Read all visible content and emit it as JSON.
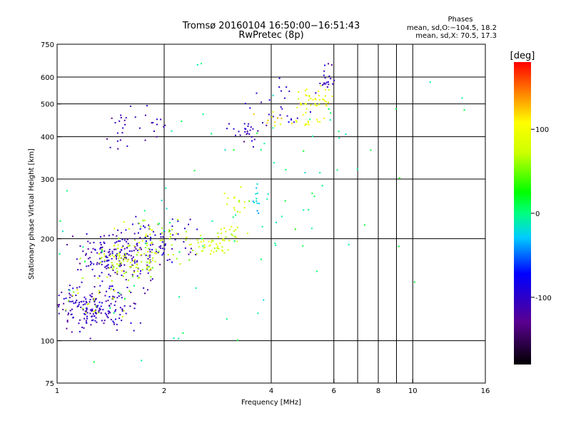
{
  "chart_data": {
    "type": "scatter",
    "title": "Tromsø 20160104 16:50:00−16:51:43",
    "subtitle": "RwPretec (8p)",
    "stats": {
      "heading": "Phases",
      "line1": "mean, sd,O:−104.5, 18.2",
      "line2": "mean, sd,X:  70.5, 17.3"
    },
    "xlabel": "Frequency [MHz]",
    "ylabel": "Stationary phase Virtual Height [km]",
    "x_scale": "log",
    "y_scale": "log",
    "xlim": [
      1,
      16
    ],
    "ylim": [
      75,
      750
    ],
    "x_ticks": [
      1,
      2,
      4,
      6,
      8,
      10,
      16
    ],
    "x_tick_labels": [
      "1",
      "2",
      "4",
      "6",
      "8",
      "10",
      "16"
    ],
    "x_gridlines": [
      2,
      4,
      6,
      7,
      8,
      9,
      10
    ],
    "y_ticks": [
      75,
      100,
      200,
      300,
      400,
      500,
      600,
      750
    ],
    "y_tick_labels": [
      "75",
      "100",
      "200",
      "300",
      "400",
      "500",
      "600",
      "750"
    ],
    "y_gridlines": [
      100,
      200,
      300,
      400,
      500,
      600
    ],
    "colorbar": {
      "label": "[deg]",
      "range": [
        -180,
        180
      ],
      "ticks": [
        100,
        0,
        -100
      ],
      "tick_labels": [
        "100",
        "0",
        "-100"
      ]
    },
    "series": [
      {
        "clusters": [
          {
            "fc": 1.12,
            "hc": 125,
            "dx": 0.1,
            "dy": 0.08,
            "n": 80,
            "c": -110
          },
          {
            "fc": 1.28,
            "hc": 125,
            "dx": 0.09,
            "dy": 0.07,
            "n": 70,
            "c": -100
          },
          {
            "fc": 1.45,
            "hc": 130,
            "dx": 0.1,
            "dy": 0.1,
            "n": 60,
            "c": -110
          },
          {
            "fc": 1.35,
            "hc": 185,
            "dx": 0.12,
            "dy": 0.07,
            "n": 70,
            "c": -110
          },
          {
            "fc": 1.55,
            "hc": 175,
            "dx": 0.13,
            "dy": 0.06,
            "n": 90,
            "c": -108
          },
          {
            "fc": 1.85,
            "hc": 200,
            "dx": 0.15,
            "dy": 0.08,
            "n": 70,
            "c": -100
          },
          {
            "fc": 1.5,
            "hc": 430,
            "dx": 0.05,
            "dy": 0.08,
            "n": 20,
            "c": -110
          },
          {
            "fc": 1.9,
            "hc": 440,
            "dx": 0.04,
            "dy": 0.06,
            "n": 12,
            "c": -110
          },
          {
            "fc": 3.35,
            "hc": 415,
            "dx": 0.05,
            "dy": 0.04,
            "n": 25,
            "c": -110
          },
          {
            "fc": 4.2,
            "hc": 490,
            "dx": 0.1,
            "dy": 0.08,
            "n": 25,
            "c": -100
          },
          {
            "fc": 5.7,
            "hc": 590,
            "dx": 0.03,
            "dy": 0.06,
            "n": 20,
            "c": -105
          }
        ]
      },
      {
        "clusters": [
          {
            "fc": 1.3,
            "hc": 140,
            "dx": 0.1,
            "dy": 0.08,
            "n": 30,
            "c": 75
          },
          {
            "fc": 1.55,
            "hc": 170,
            "dx": 0.12,
            "dy": 0.06,
            "n": 90,
            "c": 72
          },
          {
            "fc": 1.85,
            "hc": 200,
            "dx": 0.12,
            "dy": 0.08,
            "n": 60,
            "c": 70
          },
          {
            "fc": 2.7,
            "hc": 190,
            "dx": 0.08,
            "dy": 0.04,
            "n": 40,
            "c": 80
          },
          {
            "fc": 3.05,
            "hc": 205,
            "dx": 0.06,
            "dy": 0.04,
            "n": 20,
            "c": 75
          },
          {
            "fc": 3.2,
            "hc": 255,
            "dx": 0.04,
            "dy": 0.04,
            "n": 15,
            "c": 80
          },
          {
            "fc": 5.3,
            "hc": 520,
            "dx": 0.07,
            "dy": 0.05,
            "n": 40,
            "c": 95
          },
          {
            "fc": 5.1,
            "hc": 450,
            "dx": 0.05,
            "dy": 0.03,
            "n": 15,
            "c": 100
          },
          {
            "fc": 4.0,
            "hc": 450,
            "dx": 0.06,
            "dy": 0.03,
            "n": 10,
            "c": 110
          }
        ]
      },
      {
        "clusters": [
          {
            "fc": 3.65,
            "hc": 260,
            "dx": 0.02,
            "dy": 0.05,
            "n": 12,
            "c": -25
          },
          {
            "fc": 5.0,
            "hc": 300,
            "dx": 0.5,
            "dy": 0.5,
            "n": 70,
            "c": 0
          },
          {
            "fc": 1.55,
            "hc": 160,
            "dx": 0.4,
            "dy": 0.4,
            "n": 40,
            "c": 0
          }
        ]
      }
    ]
  }
}
